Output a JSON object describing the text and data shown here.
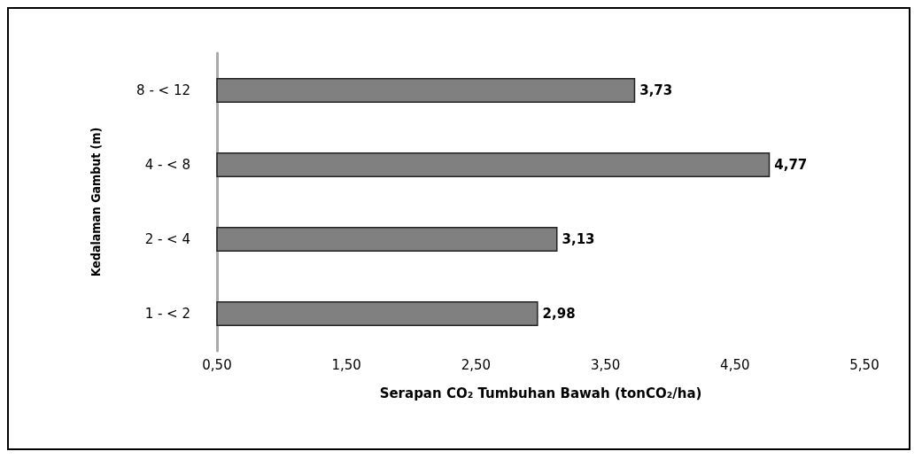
{
  "chart_data": {
    "type": "bar",
    "orientation": "horizontal",
    "xlabel": "Serapan CO₂ Tumbuhan Bawah (tonCO₂/ha)",
    "ylabel": "Kedalaman Gambut (m)",
    "categories": [
      "8 - < 12",
      "4 - < 8",
      "2 - < 4",
      "1 - < 2"
    ],
    "values": [
      3.73,
      4.77,
      3.13,
      2.98
    ],
    "value_labels": [
      "3,73",
      "4,77",
      "3,13",
      "2,98"
    ],
    "color": "#808080",
    "xlim": [
      0.5,
      5.5
    ],
    "xticks": [
      {
        "value": 0.5,
        "label": "0,50"
      },
      {
        "value": 1.5,
        "label": "1,50"
      },
      {
        "value": 2.5,
        "label": "2,50"
      },
      {
        "value": 3.5,
        "label": "3,50"
      },
      {
        "value": 4.5,
        "label": "4,50"
      },
      {
        "value": 5.5,
        "label": "5,50"
      }
    ],
    "grid": false
  }
}
